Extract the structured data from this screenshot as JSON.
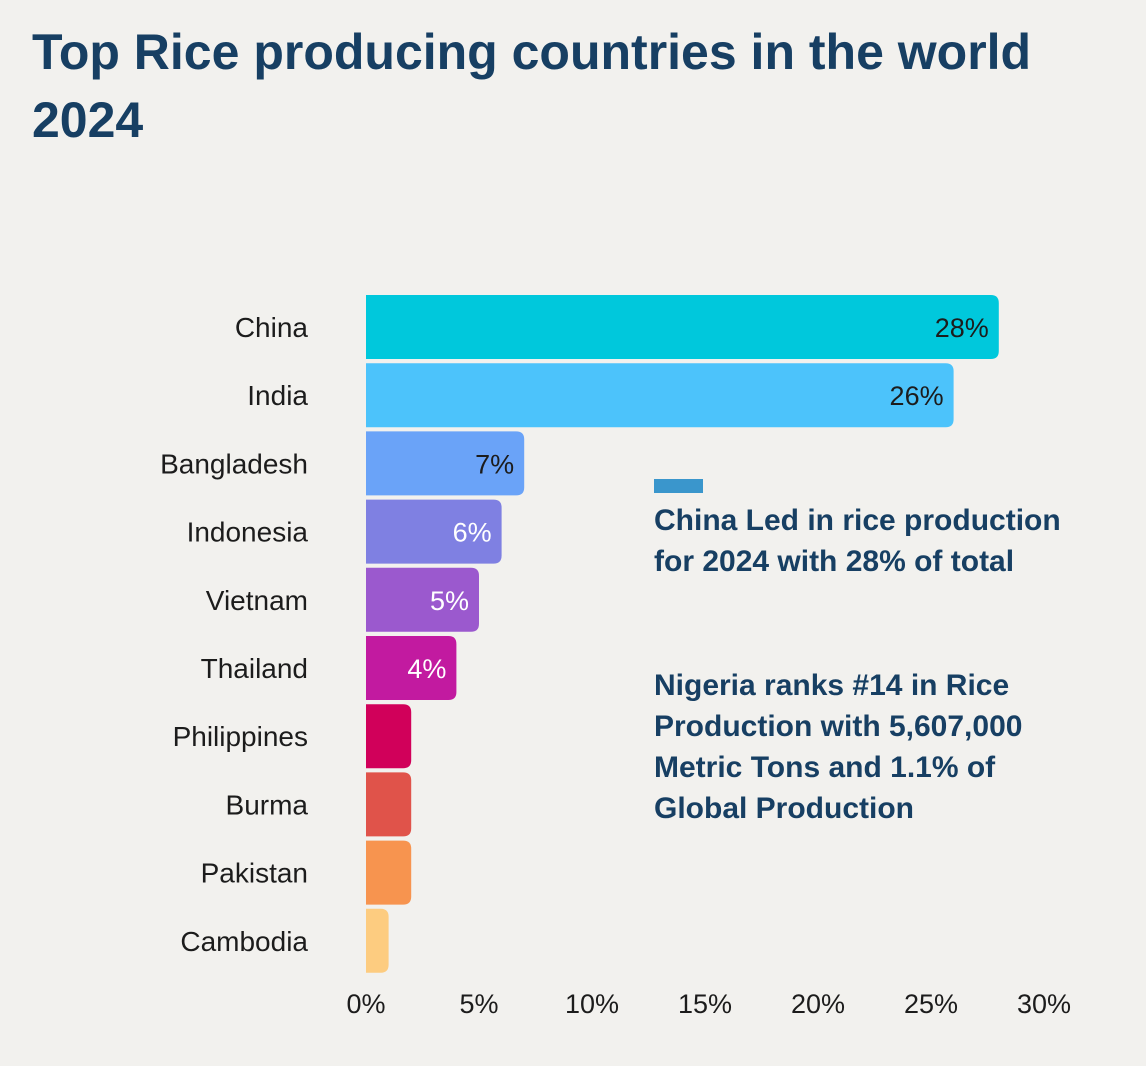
{
  "title": "Top Rice producing countries in the world 2024",
  "notes": {
    "primary": "China Led in rice production for 2024 with 28% of total",
    "secondary": "Nigeria ranks #14 in Rice Production with 5,607,000 Metric Tons and 1.1% of Global Production"
  },
  "legend": {
    "swatch_color": "#3a96cc"
  },
  "chart_data": {
    "type": "bar",
    "orientation": "horizontal",
    "title": "Top Rice producing countries in the world 2024",
    "xlabel": "",
    "ylabel": "",
    "x_unit": "%",
    "xlim": [
      0,
      30
    ],
    "x_ticks": [
      0,
      5,
      10,
      15,
      20,
      25,
      30
    ],
    "x_tick_labels": [
      "0%",
      "5%",
      "10%",
      "15%",
      "20%",
      "25%",
      "30%"
    ],
    "grid": false,
    "categories": [
      "China",
      "India",
      "Bangladesh",
      "Indonesia",
      "Vietnam",
      "Thailand",
      "Philippines",
      "Burma",
      "Pakistan",
      "Cambodia"
    ],
    "values": [
      28,
      26,
      7,
      6,
      5,
      4,
      2,
      2,
      2,
      1
    ],
    "data_labels": [
      "28%",
      "26%",
      "7%",
      "6%",
      "5%",
      "4%",
      "",
      "",
      "",
      ""
    ],
    "colors": [
      "#00c8dc",
      "#4cc3fb",
      "#6aa3f8",
      "#7f80e2",
      "#9b59ce",
      "#c21aa0",
      "#d1005a",
      "#e0534a",
      "#f7944f",
      "#fdcc80"
    ],
    "label_colors": [
      "#1c1c1c",
      "#1c1c1c",
      "#1c1c1c",
      "#ffffff",
      "#ffffff",
      "#ffffff",
      "#ffffff",
      "#ffffff",
      "#ffffff",
      "#ffffff"
    ]
  }
}
